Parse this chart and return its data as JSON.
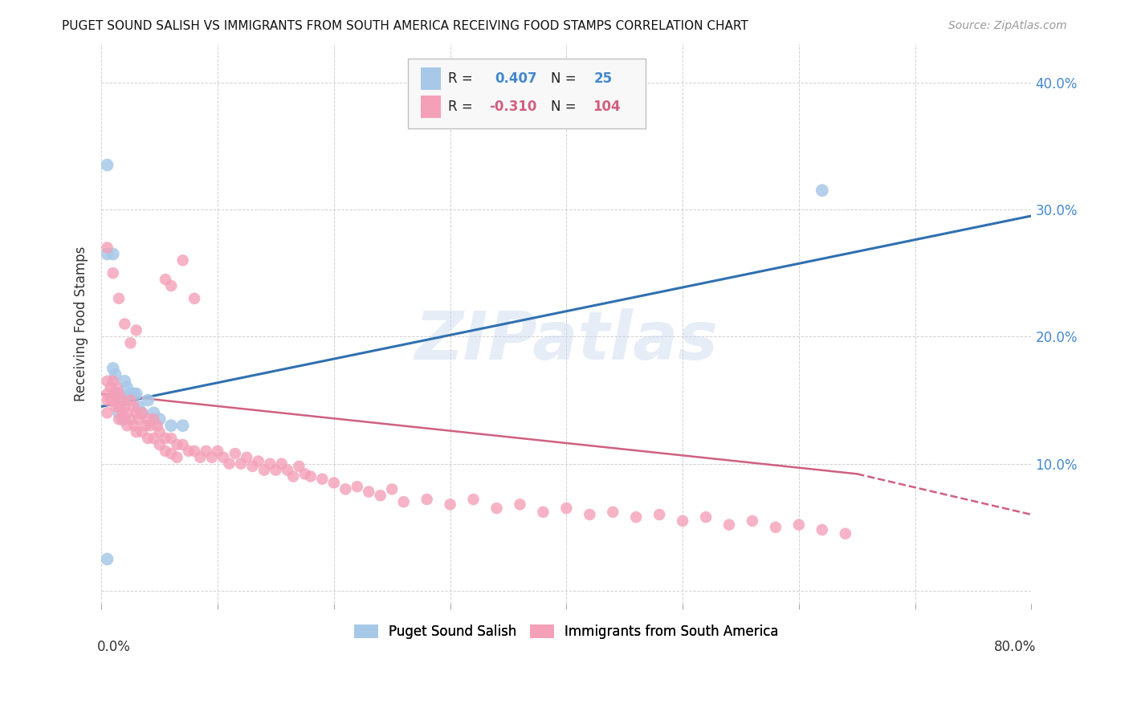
{
  "title": "PUGET SOUND SALISH VS IMMIGRANTS FROM SOUTH AMERICA RECEIVING FOOD STAMPS CORRELATION CHART",
  "source": "Source: ZipAtlas.com",
  "ylabel": "Receiving Food Stamps",
  "ytick_vals": [
    0.0,
    0.1,
    0.2,
    0.3,
    0.4
  ],
  "ytick_labels": [
    "",
    "10.0%",
    "20.0%",
    "30.0%",
    "40.0%"
  ],
  "xrange": [
    0.0,
    0.8
  ],
  "yrange": [
    -0.01,
    0.43
  ],
  "blue_R": 0.407,
  "blue_N": 25,
  "pink_R": -0.31,
  "pink_N": 104,
  "blue_color": "#a8c8e8",
  "pink_color": "#f4a0b8",
  "blue_line_color": "#3070b0",
  "pink_line_color": "#d06080",
  "watermark": "ZIPatlas",
  "blue_points_x": [
    0.005,
    0.005,
    0.01,
    0.01,
    0.012,
    0.013,
    0.015,
    0.015,
    0.015,
    0.018,
    0.02,
    0.02,
    0.022,
    0.025,
    0.028,
    0.03,
    0.032,
    0.035,
    0.04,
    0.045,
    0.05,
    0.06,
    0.07,
    0.62,
    0.005
  ],
  "blue_points_y": [
    0.335,
    0.265,
    0.265,
    0.175,
    0.17,
    0.155,
    0.155,
    0.15,
    0.14,
    0.135,
    0.15,
    0.165,
    0.16,
    0.155,
    0.155,
    0.155,
    0.145,
    0.14,
    0.15,
    0.14,
    0.135,
    0.13,
    0.13,
    0.315,
    0.025
  ],
  "pink_points_x": [
    0.005,
    0.005,
    0.005,
    0.005,
    0.008,
    0.008,
    0.01,
    0.01,
    0.012,
    0.012,
    0.013,
    0.015,
    0.015,
    0.015,
    0.018,
    0.018,
    0.02,
    0.02,
    0.022,
    0.022,
    0.025,
    0.025,
    0.028,
    0.028,
    0.03,
    0.03,
    0.032,
    0.035,
    0.035,
    0.038,
    0.04,
    0.04,
    0.042,
    0.045,
    0.045,
    0.048,
    0.05,
    0.05,
    0.055,
    0.055,
    0.06,
    0.06,
    0.065,
    0.065,
    0.07,
    0.075,
    0.08,
    0.085,
    0.09,
    0.095,
    0.1,
    0.105,
    0.11,
    0.115,
    0.12,
    0.125,
    0.13,
    0.135,
    0.14,
    0.145,
    0.15,
    0.155,
    0.16,
    0.165,
    0.17,
    0.175,
    0.18,
    0.19,
    0.2,
    0.21,
    0.22,
    0.23,
    0.24,
    0.25,
    0.26,
    0.28,
    0.3,
    0.32,
    0.34,
    0.36,
    0.38,
    0.4,
    0.42,
    0.44,
    0.46,
    0.48,
    0.5,
    0.52,
    0.54,
    0.56,
    0.58,
    0.6,
    0.62,
    0.64,
    0.005,
    0.01,
    0.015,
    0.02,
    0.025,
    0.03,
    0.055,
    0.06,
    0.07,
    0.08
  ],
  "pink_points_y": [
    0.165,
    0.155,
    0.15,
    0.14,
    0.16,
    0.15,
    0.165,
    0.15,
    0.155,
    0.145,
    0.16,
    0.155,
    0.145,
    0.135,
    0.15,
    0.14,
    0.145,
    0.135,
    0.14,
    0.13,
    0.15,
    0.135,
    0.145,
    0.13,
    0.14,
    0.125,
    0.135,
    0.14,
    0.125,
    0.13,
    0.135,
    0.12,
    0.13,
    0.135,
    0.12,
    0.13,
    0.125,
    0.115,
    0.12,
    0.11,
    0.12,
    0.108,
    0.115,
    0.105,
    0.115,
    0.11,
    0.11,
    0.105,
    0.11,
    0.105,
    0.11,
    0.105,
    0.1,
    0.108,
    0.1,
    0.105,
    0.098,
    0.102,
    0.095,
    0.1,
    0.095,
    0.1,
    0.095,
    0.09,
    0.098,
    0.092,
    0.09,
    0.088,
    0.085,
    0.08,
    0.082,
    0.078,
    0.075,
    0.08,
    0.07,
    0.072,
    0.068,
    0.072,
    0.065,
    0.068,
    0.062,
    0.065,
    0.06,
    0.062,
    0.058,
    0.06,
    0.055,
    0.058,
    0.052,
    0.055,
    0.05,
    0.052,
    0.048,
    0.045,
    0.27,
    0.25,
    0.23,
    0.21,
    0.195,
    0.205,
    0.245,
    0.24,
    0.26,
    0.23
  ]
}
